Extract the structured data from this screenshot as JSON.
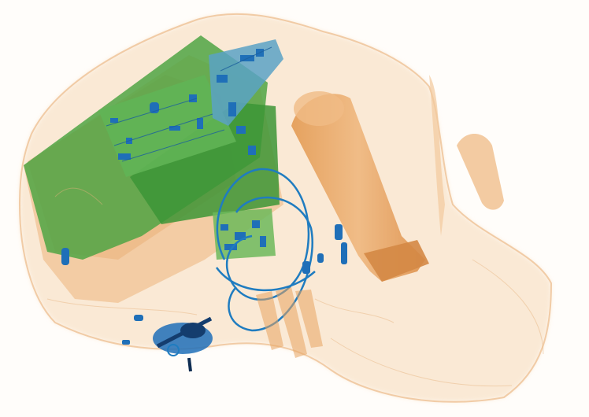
{
  "image": {
    "kind": "x-ray baggage scan",
    "palette": {
      "background": "#fffdfa",
      "organic_orange": "#e9a25a",
      "organic_light": "#f2c99d",
      "inorganic_green": "#3f9a3a",
      "green_light": "#6cb95a",
      "metal_blue": "#1f6fb8",
      "metal_dark": "#143d6e"
    },
    "objects": [
      "bag-outline",
      "laptop-panel",
      "circuit-board",
      "tablet",
      "bottle",
      "cable-loop",
      "keys-cluster",
      "zipper-pulls",
      "shoe-fragment"
    ]
  }
}
